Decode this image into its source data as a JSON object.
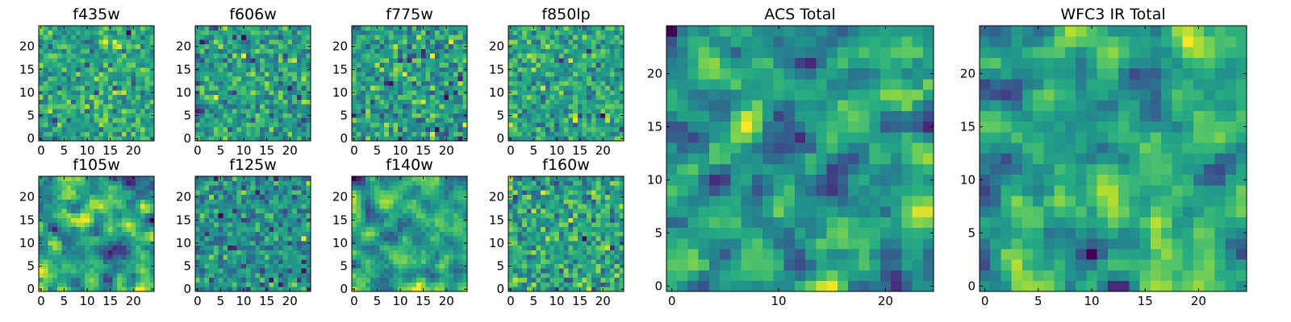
{
  "chart_data": [
    {
      "type": "heatmap",
      "title": "f435w",
      "colormap": "viridis",
      "grid_size": [
        25,
        25
      ],
      "xlim": [
        0,
        24
      ],
      "ylim": [
        0,
        24
      ],
      "xticks": [
        0,
        5,
        10,
        15,
        20
      ],
      "yticks": [
        0,
        5,
        10,
        15,
        20
      ],
      "origin": "lower",
      "seed": 11
    },
    {
      "type": "heatmap",
      "title": "f606w",
      "colormap": "viridis",
      "grid_size": [
        25,
        25
      ],
      "xlim": [
        0,
        24
      ],
      "ylim": [
        0,
        24
      ],
      "xticks": [
        0,
        5,
        10,
        15,
        20
      ],
      "yticks": [
        0,
        5,
        10,
        15,
        20
      ],
      "origin": "lower",
      "seed": 23
    },
    {
      "type": "heatmap",
      "title": "f775w",
      "colormap": "viridis",
      "grid_size": [
        25,
        25
      ],
      "xlim": [
        0,
        24
      ],
      "ylim": [
        0,
        24
      ],
      "xticks": [
        0,
        5,
        10,
        15,
        20
      ],
      "yticks": [
        0,
        5,
        10,
        15,
        20
      ],
      "origin": "lower",
      "seed": 37
    },
    {
      "type": "heatmap",
      "title": "f850lp",
      "colormap": "viridis",
      "grid_size": [
        25,
        25
      ],
      "xlim": [
        0,
        24
      ],
      "ylim": [
        0,
        24
      ],
      "xticks": [
        0,
        5,
        10,
        15,
        20
      ],
      "yticks": [
        0,
        5,
        10,
        15,
        20
      ],
      "origin": "lower",
      "seed": 41
    },
    {
      "type": "heatmap",
      "title": "f105w",
      "colormap": "viridis",
      "grid_size": [
        25,
        25
      ],
      "xlim": [
        0,
        24
      ],
      "ylim": [
        0,
        24
      ],
      "xticks": [
        0,
        5,
        10,
        15,
        20
      ],
      "yticks": [
        0,
        5,
        10,
        15,
        20
      ],
      "origin": "lower",
      "seed": 53
    },
    {
      "type": "heatmap",
      "title": "f125w",
      "colormap": "viridis",
      "grid_size": [
        25,
        25
      ],
      "xlim": [
        0,
        24
      ],
      "ylim": [
        0,
        24
      ],
      "xticks": [
        0,
        5,
        10,
        15,
        20
      ],
      "yticks": [
        0,
        5,
        10,
        15,
        20
      ],
      "origin": "lower",
      "seed": 67
    },
    {
      "type": "heatmap",
      "title": "f140w",
      "colormap": "viridis",
      "grid_size": [
        25,
        25
      ],
      "xlim": [
        0,
        24
      ],
      "ylim": [
        0,
        24
      ],
      "xticks": [
        0,
        5,
        10,
        15,
        20
      ],
      "yticks": [
        0,
        5,
        10,
        15,
        20
      ],
      "origin": "lower",
      "seed": 79
    },
    {
      "type": "heatmap",
      "title": "f160w",
      "colormap": "viridis",
      "grid_size": [
        25,
        25
      ],
      "xlim": [
        0,
        24
      ],
      "ylim": [
        0,
        24
      ],
      "xticks": [
        0,
        5,
        10,
        15,
        20
      ],
      "yticks": [
        0,
        5,
        10,
        15,
        20
      ],
      "origin": "lower",
      "seed": 83
    },
    {
      "type": "heatmap",
      "title": "ACS Total",
      "colormap": "viridis",
      "grid_size": [
        25,
        25
      ],
      "xlim": [
        0,
        24
      ],
      "ylim": [
        0,
        24
      ],
      "xticks": [
        0,
        10,
        20
      ],
      "yticks": [
        0,
        5,
        10,
        15,
        20
      ],
      "origin": "lower",
      "seed": 97
    },
    {
      "type": "heatmap",
      "title": "WFC3 IR Total",
      "colormap": "viridis",
      "grid_size": [
        25,
        25
      ],
      "xlim": [
        0,
        24
      ],
      "ylim": [
        0,
        24
      ],
      "xticks": [
        0,
        5,
        10,
        15,
        20
      ],
      "yticks": [
        0,
        5,
        10,
        15,
        20
      ],
      "origin": "lower",
      "seed": 101
    }
  ]
}
